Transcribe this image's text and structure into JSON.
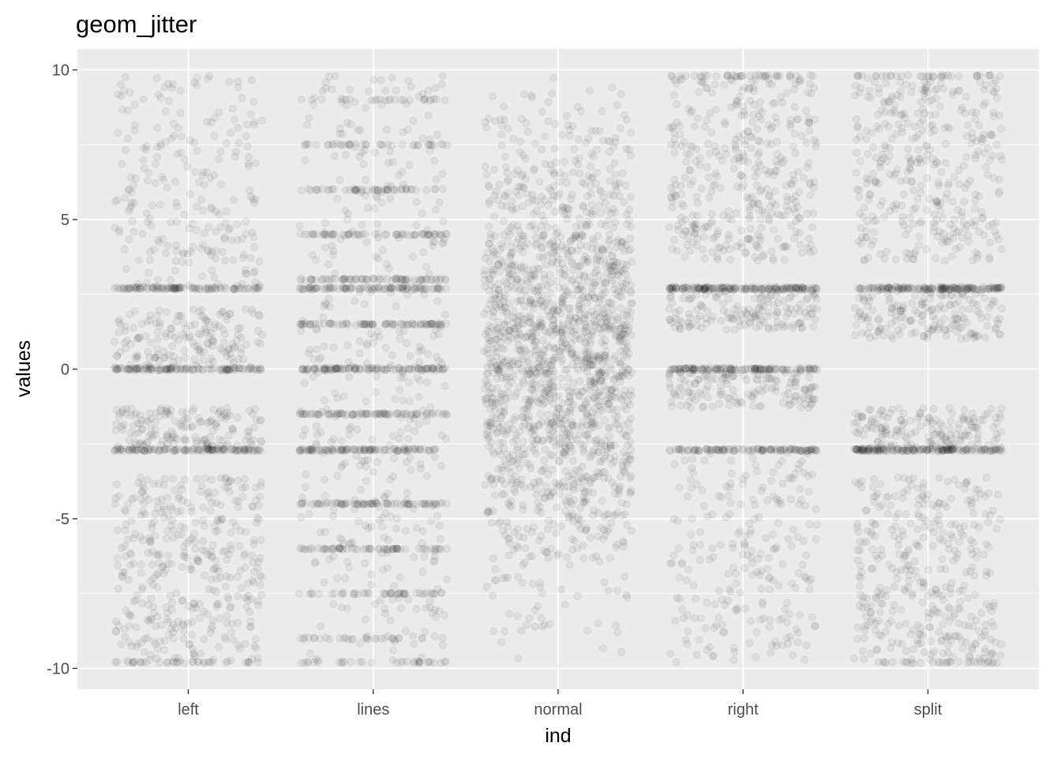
{
  "chart_data": {
    "type": "scatter",
    "title": "geom_jitter",
    "xlabel": "ind",
    "ylabel": "values",
    "categories": [
      "left",
      "lines",
      "normal",
      "right",
      "split"
    ],
    "yticks": [
      10,
      5,
      0,
      -5,
      -10
    ],
    "ylim": [
      -10.7,
      10.7
    ],
    "grid": true,
    "legend": "none",
    "colors": {
      "panel": "#ebebeb",
      "grid": "#ffffff",
      "point": "#000000",
      "tick_label": "#4d4d4d"
    },
    "jitter_width": 0.4,
    "distributions": [
      {
        "category": "left",
        "bands": [
          {
            "y": -9.8,
            "n": 35,
            "jitter": 0.03
          },
          {
            "y": -2.7,
            "n": 110,
            "jitter": 0.04
          },
          {
            "y": 0.0,
            "n": 110,
            "jitter": 0.04
          },
          {
            "y": 2.7,
            "n": 100,
            "jitter": 0.04
          }
        ],
        "uniforms": [
          {
            "min": -9.8,
            "max": -3.6,
            "n": 380
          },
          {
            "min": -2.7,
            "max": -1.3,
            "n": 160
          },
          {
            "min": 0.0,
            "max": 2.0,
            "n": 170
          },
          {
            "min": 2.7,
            "max": 9.8,
            "n": 230
          }
        ]
      },
      {
        "category": "lines",
        "bands": [
          {
            "y": -9.8,
            "n": 30,
            "jitter": 0.03
          },
          {
            "y": -9.0,
            "n": 25,
            "jitter": 0.03
          },
          {
            "y": -7.5,
            "n": 45,
            "jitter": 0.03
          },
          {
            "y": -6.0,
            "n": 60,
            "jitter": 0.03
          },
          {
            "y": -4.5,
            "n": 70,
            "jitter": 0.03
          },
          {
            "y": -2.7,
            "n": 100,
            "jitter": 0.04
          },
          {
            "y": -1.5,
            "n": 80,
            "jitter": 0.03
          },
          {
            "y": 0.0,
            "n": 110,
            "jitter": 0.04
          },
          {
            "y": 1.5,
            "n": 80,
            "jitter": 0.03
          },
          {
            "y": 2.7,
            "n": 90,
            "jitter": 0.04
          },
          {
            "y": 3.0,
            "n": 70,
            "jitter": 0.03
          },
          {
            "y": 4.5,
            "n": 60,
            "jitter": 0.03
          },
          {
            "y": 6.0,
            "n": 50,
            "jitter": 0.03
          },
          {
            "y": 7.5,
            "n": 35,
            "jitter": 0.03
          },
          {
            "y": 9.0,
            "n": 25,
            "jitter": 0.03
          }
        ],
        "uniforms": [
          {
            "min": -9.8,
            "max": 9.8,
            "n": 420
          }
        ]
      },
      {
        "category": "normal",
        "normal": {
          "mean": 0.5,
          "sd": 4.0,
          "min": -9.8,
          "max": 9.8,
          "n": 1700
        }
      },
      {
        "category": "right",
        "bands": [
          {
            "y": -2.7,
            "n": 110,
            "jitter": 0.04
          },
          {
            "y": 0.0,
            "n": 120,
            "jitter": 0.04
          },
          {
            "y": 2.7,
            "n": 150,
            "jitter": 0.05
          },
          {
            "y": 9.8,
            "n": 35,
            "jitter": 0.03
          }
        ],
        "uniforms": [
          {
            "min": -9.8,
            "max": -2.7,
            "n": 230
          },
          {
            "min": -1.3,
            "max": 0.0,
            "n": 150
          },
          {
            "min": 1.3,
            "max": 2.7,
            "n": 160
          },
          {
            "min": 3.6,
            "max": 9.8,
            "n": 380
          }
        ]
      },
      {
        "category": "split",
        "bands": [
          {
            "y": -9.8,
            "n": 30,
            "jitter": 0.03
          },
          {
            "y": -2.7,
            "n": 150,
            "jitter": 0.05
          },
          {
            "y": 2.7,
            "n": 150,
            "jitter": 0.05
          },
          {
            "y": 9.8,
            "n": 30,
            "jitter": 0.03
          }
        ],
        "uniforms": [
          {
            "min": -9.8,
            "max": -3.6,
            "n": 360
          },
          {
            "min": -2.7,
            "max": -1.3,
            "n": 170
          },
          {
            "min": 1.0,
            "max": 2.7,
            "n": 170
          },
          {
            "min": 3.6,
            "max": 9.8,
            "n": 360
          }
        ]
      }
    ]
  }
}
